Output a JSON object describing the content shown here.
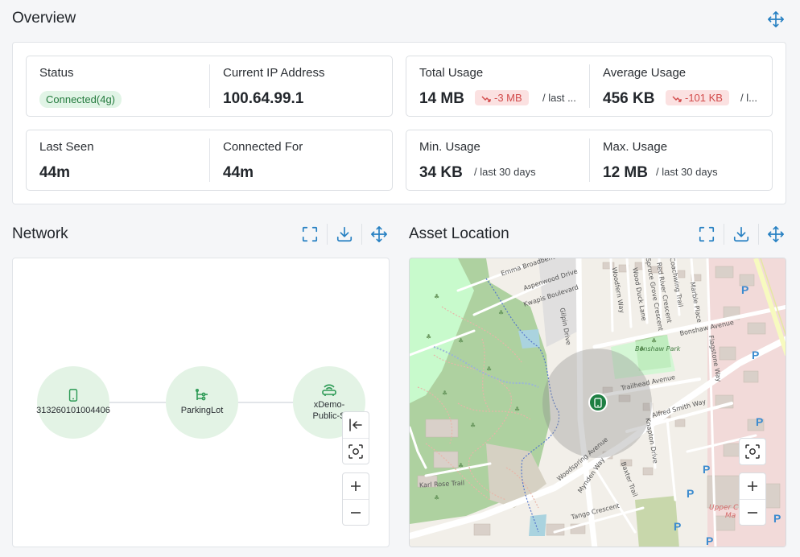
{
  "overview": {
    "title": "Overview",
    "status_label": "Status",
    "status_value": "Connected(4g)",
    "ip_label": "Current IP Address",
    "ip_value": "100.64.99.1",
    "total_usage_label": "Total Usage",
    "total_usage_value": "14 MB",
    "total_usage_delta": "-3 MB",
    "total_usage_suffix": "/ last ...",
    "avg_usage_label": "Average Usage",
    "avg_usage_value": "456 KB",
    "avg_usage_delta": "-101 KB",
    "avg_usage_suffix": "/ l...",
    "last_seen_label": "Last Seen",
    "last_seen_value": "44m",
    "connected_for_label": "Connected For",
    "connected_for_value": "44m",
    "min_usage_label": "Min. Usage",
    "min_usage_value": "34 KB",
    "min_usage_suffix": "/ last 30 days",
    "max_usage_label": "Max. Usage",
    "max_usage_value": "12 MB",
    "max_usage_suffix": "/ last 30 days"
  },
  "network": {
    "title": "Network",
    "nodes": [
      {
        "label": "313260101004406",
        "icon": "phone-icon"
      },
      {
        "label": "ParkingLot",
        "icon": "network-tree-icon"
      },
      {
        "label": "xDemo-Public-S",
        "icon": "router-icon"
      }
    ]
  },
  "location": {
    "title": "Asset Location",
    "streets": [
      "Emma Broadbent",
      "Aspenwood Drive",
      "Kwapis Boulevard",
      "Gilpin Drive",
      "Woodfern Way",
      "Wood Duck Lane",
      "Spruce Grove Crescent",
      "Red River Crescent",
      "Coachwing Trail",
      "Marble Place",
      "Bonshaw Avenue",
      "Bonshaw Park",
      "Trailhead Avenue",
      "Alfred Smith Way",
      "Flagstone Way",
      "Woodspring Avenue",
      "Knapton Drive",
      "Mynden Way",
      "Baxter Trail",
      "Karl Rose Trail",
      "Tango Crescent",
      "Upper Ca Ma"
    ],
    "parking_marker": "P"
  },
  "colors": {
    "accent": "#2680c2",
    "node_fill": "#e3f3e5",
    "node_icon": "#2c9a55",
    "ok_badge_bg": "#e1f4e6",
    "ok_badge_text": "#237a3d",
    "down_badge_bg": "#fbe1e1",
    "down_badge_text": "#d24a4a",
    "marker": "#1e7f43"
  }
}
